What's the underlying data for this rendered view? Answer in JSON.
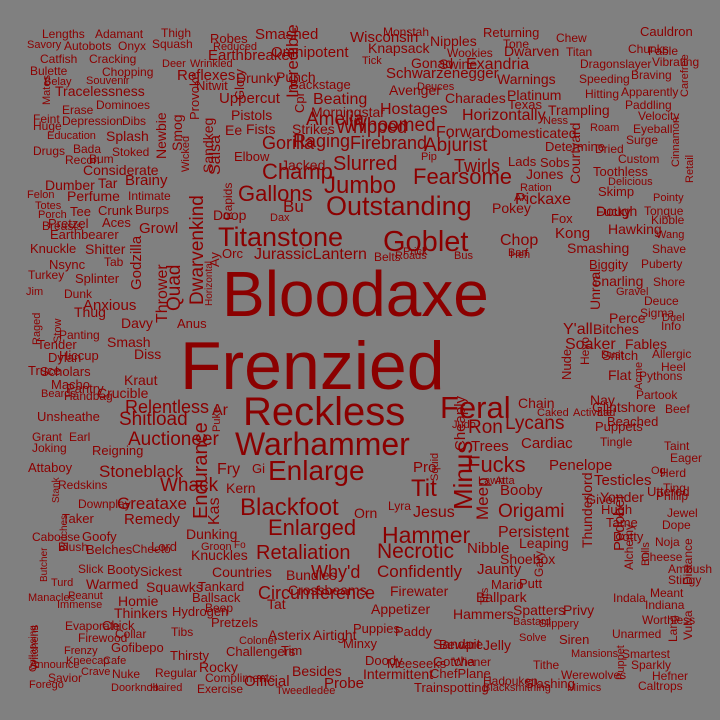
{
  "colors": {
    "background": "#808080",
    "text": "#8b0000"
  },
  "words": [
    "Bloodaxe",
    "Frenzied",
    "Reckless",
    "Warhammer",
    "Outstanding",
    "Titanstone",
    "Goblet",
    "Enlarge",
    "Feral",
    "Blackfoot",
    "Minus",
    "Jumbo",
    "Fearsome",
    "Gallons",
    "Hammer",
    "Enlarged",
    "Dwarvenkind",
    "Champ",
    "Slurred",
    "Fucks",
    "Retaliation",
    "Necrotic",
    "Endurance",
    "Lycans",
    "Ron",
    "Quad",
    "Tit",
    "Whack",
    "Relentless",
    "Shitload",
    "Auctioneer",
    "Stoneblack",
    "Greataxe",
    "Circumference",
    "Whoomed",
    "Firebrand",
    "Abjurist",
    "Twirls",
    "Pickaxe",
    "Whipped",
    "Forward",
    "Horizontally",
    "Hostages",
    "Charades",
    "Trampling",
    "Domesticated",
    "Amelia",
    "Raging",
    "Gorilla",
    "Strikes",
    "Beating",
    "Backstage",
    "Morningstar",
    "Omnipotent",
    "Wisconsin",
    "Knapsack",
    "Nipples",
    "Smashed",
    "Earthbreaker",
    "Reflexes",
    "Uppercut",
    "Pistols",
    "Drunky",
    "Punch",
    "Avenger",
    "Schwarzenegger",
    "Exandria",
    "Dwarven",
    "Warnings",
    "Platinum",
    "Gonad",
    "Swine",
    "Returning",
    "Tone",
    "Cauldron",
    "Chunks",
    "Titan",
    "Fable",
    "Dragonslayer",
    "Vibrating",
    "Speeding",
    "Braving",
    "Hitting",
    "Apparently",
    "Paddling",
    "Velocity",
    "Eyeball",
    "Surge",
    "Custom",
    "Toothless",
    "Delicious",
    "Skimp",
    "Pointy",
    "Tongue",
    "Kibble",
    "Shave",
    "Puberty",
    "Shore",
    "Deuce",
    "Sigma",
    "Info",
    "Allergic",
    "Heel",
    "Pythons",
    "Partook",
    "Beef",
    "Taint",
    "Eager",
    "Herd",
    "Ting",
    "Phillip",
    "Jewel",
    "Dope",
    "Noja",
    "Distance",
    "Cheese",
    "Ambush",
    "Stingy",
    "Meant",
    "Indiana",
    "Worthless",
    "Unarmed",
    "Smartest",
    "Sparkly",
    "Hefner",
    "Caltrops",
    "Vulva",
    "Lang",
    "Lengths",
    "Savory",
    "Autobots",
    "Onyx",
    "Catfish",
    "Cracking",
    "Bulette",
    "Chopping",
    "Belay",
    "Souvenir",
    "Adamant",
    "Robes",
    "Thigh",
    "Squash",
    "Reduced",
    "Wrinkled",
    "Deer",
    "Tick",
    "Monstah",
    "Wookies",
    "Chew",
    "Mates",
    "Tracelessness",
    "Erase",
    "Feint",
    "Huge",
    "Dominoes",
    "Depression",
    "Dibs",
    "Education",
    "Drugs",
    "Bada",
    "Stoked",
    "Recon",
    "Bum",
    "Splash",
    "Considerate",
    "Dumber",
    "Tar",
    "Brainy",
    "Perfume",
    "Felon",
    "Totes",
    "Porch",
    "Tee",
    "Crunk",
    "Breasts",
    "Pretzel",
    "Aces",
    "Earthbearer",
    "Burps",
    "Intimate",
    "Knuckle",
    "Shitter",
    "Nsync",
    "Tab",
    "Turkey",
    "Splinter",
    "Jim",
    "Dunk",
    "Thug",
    "Panting",
    "Tender",
    "Dylan",
    "Hiccup",
    "Truce",
    "Scholars",
    "Macho",
    "Pantry",
    "Handbag",
    "Beards",
    "Unsheathe",
    "Crucible",
    "Kraut",
    "Davy",
    "Smash",
    "Diss",
    "Anxious",
    "Stow",
    "Raged",
    "Grant",
    "Earl",
    "Joking",
    "Reigning",
    "Attaboy",
    "Redskins",
    "Downplay",
    "Taker",
    "Remedy",
    "Caboose",
    "Goofy",
    "Lord",
    "Blush",
    "Belches",
    "Cheeto",
    "Slick",
    "Booty",
    "Sickest",
    "Warmed",
    "Squawks",
    "Homie",
    "Thinkers",
    "Manacles",
    "Peanut",
    "Immense",
    "Evaporate",
    "Chick",
    "Firewood",
    "Collar",
    "Frenzy",
    "Gofibepo",
    "Kneecap",
    "Cafe",
    "Announce",
    "Savior",
    "Crave",
    "Nuke",
    "Forego",
    "Doorknob",
    "Haired",
    "Exercise",
    "Regular",
    "Thirsty",
    "Rocky",
    "Compliments",
    "Official",
    "Tweedledee",
    "Probe",
    "Trainspotting",
    "Besides",
    "Intermittent",
    "Meeseeks",
    "Doody",
    "ChefPlane",
    "Gotcha",
    "Wiener",
    "Slashing",
    "Blacksmithing",
    "Mimics",
    "Tithe",
    "Werewolves",
    "Mansions",
    "Puppet",
    "Beware",
    "Hadouken",
    "Jelly",
    "Sandpit",
    "Paddy",
    "Puppies",
    "Minxy",
    "Asterix",
    "Airtight",
    "Tim",
    "Challengers",
    "Pretzels",
    "Colonel",
    "Tibs",
    "Hydrogen",
    "Beep",
    "Tankard",
    "Ballsack",
    "Countries",
    "Bundles",
    "Tat",
    "Crossbeams",
    "Firewater",
    "Appetizer",
    "Hammers",
    "Ballpark",
    "Spatters",
    "Privy",
    "Bastard",
    "Siren",
    "Slippery",
    "Solve",
    "Tits",
    "Mario",
    "Putt",
    "Gary",
    "Shoebox",
    "Leaping",
    "Nibble",
    "Persistent",
    "Origami",
    "Booby",
    "Jaunty",
    "Confidently",
    "Why'd",
    "Dunking",
    "Knuckles",
    "Groon",
    "Kern",
    "Fry",
    "Gi",
    "Jesus",
    "Orn",
    "Lyra",
    "Pro",
    "Squid",
    "Trees",
    "Cardiac",
    "Lawn",
    "Atta",
    "Meep",
    "Penelope",
    "Testicles",
    "Yonder",
    "Giver",
    "Hugh",
    "Tame",
    "Dotty",
    "Thunderlord",
    "Pedober",
    "Bulls",
    "Alchemy",
    "Indala",
    "Og",
    "Uttered",
    "Tingle",
    "Puppets",
    "Lad",
    "Beached",
    "Glintshore",
    "Caked",
    "Activate",
    "Chain",
    "Judo",
    "Nay",
    "Acme",
    "Heyo",
    "Nude",
    "Flat",
    "Snitch",
    "Dust",
    "Fables",
    "Soaker",
    "Y'all",
    "Bitches",
    "Perce",
    "Duel",
    "Gravel",
    "Snarling",
    "Biggity",
    "Smashing",
    "Unreal",
    "Hawking",
    "Dough",
    "Kong",
    "Chop",
    "Barf",
    "Heh",
    "Prick",
    "Bus",
    "Belts",
    "Roads",
    "JurassicLantern",
    "Orc",
    "Ay",
    "Bu",
    "Doop",
    "Dax",
    "Fucky",
    "Fox",
    "Pokey",
    "Ration",
    "Jones",
    "Lads",
    "Sobs",
    "Determine",
    "Dried",
    "Roam",
    "Ness",
    "Courtyard",
    "Ax",
    "Pip",
    "Jacked",
    "Elbow",
    "Ee",
    "Fists",
    "Glory",
    "Salsa",
    "Sandkeg",
    "Rapids",
    "Provoke",
    "Wicked",
    "Newbie",
    "Smog",
    "Nitwit",
    "Incredible",
    "Cpr",
    "Deuces",
    "Texas",
    "Growl",
    "Thrower",
    "Godzilla",
    "Horizontal",
    "Anus",
    "Ar",
    "Puke",
    "Kas",
    "Fo",
    "Witchens",
    "Butcher",
    "Turd",
    "Collapsing",
    "Stank",
    "Britches",
    "Carefree",
    "Cinnamon",
    "Retail",
    "Wang",
    "Cheaply"
  ]
}
